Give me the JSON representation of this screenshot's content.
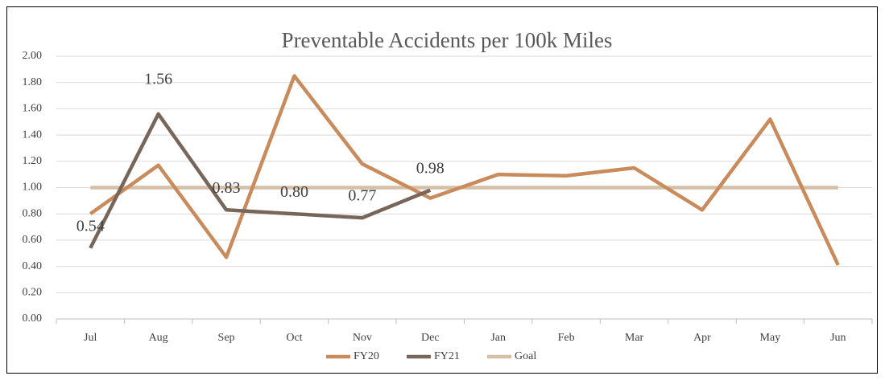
{
  "chart_data": {
    "type": "line",
    "title": "Preventable Accidents per 100k Miles",
    "categories": [
      "Jul",
      "Aug",
      "Sep",
      "Oct",
      "Nov",
      "Dec",
      "Jan",
      "Feb",
      "Mar",
      "Apr",
      "May",
      "Jun"
    ],
    "series": [
      {
        "name": "FY20",
        "color": "#c98b5c",
        "values": [
          0.8,
          1.17,
          0.47,
          1.85,
          1.18,
          0.92,
          1.1,
          1.09,
          1.15,
          0.83,
          1.52,
          0.41
        ]
      },
      {
        "name": "FY21",
        "color": "#776659",
        "values": [
          0.54,
          1.56,
          0.83,
          0.8,
          0.77,
          0.98,
          null,
          null,
          null,
          null,
          null,
          null
        ],
        "value_labels": [
          "0.54",
          "1.56",
          "0.83",
          "0.80",
          "0.77",
          "0.98",
          null,
          null,
          null,
          null,
          null,
          null
        ]
      },
      {
        "name": "Goal",
        "color": "#d5c0a7",
        "values": [
          1.0,
          1.0,
          1.0,
          1.0,
          1.0,
          1.0,
          1.0,
          1.0,
          1.0,
          1.0,
          1.0,
          1.0
        ]
      }
    ],
    "ylim": [
      0,
      2
    ],
    "yticks": [
      {
        "value": 0,
        "label": "0.00"
      },
      {
        "value": 0.2,
        "label": "0.20"
      },
      {
        "value": 0.4,
        "label": "0.40"
      },
      {
        "value": 0.6,
        "label": "0.60"
      },
      {
        "value": 0.8,
        "label": "0.80"
      },
      {
        "value": 1.0,
        "label": "1.00"
      },
      {
        "value": 1.2,
        "label": "1.20"
      },
      {
        "value": 1.4,
        "label": "1.40"
      },
      {
        "value": 1.6,
        "label": "1.60"
      },
      {
        "value": 1.8,
        "label": "1.80"
      },
      {
        "value": 2.0,
        "label": "2.00"
      }
    ],
    "grid": true,
    "legend": "bottom"
  }
}
